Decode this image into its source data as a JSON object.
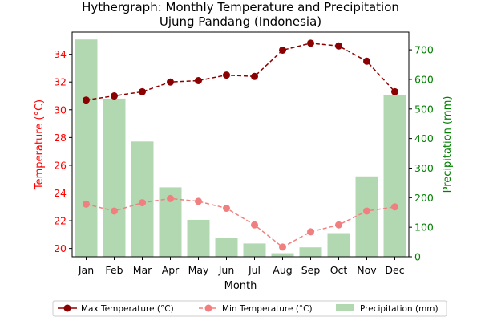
{
  "chart_data": {
    "type": "bar+line",
    "title": "Hythergraph: Monthly Temperature and Precipitation",
    "subtitle": "Ujung Pandang (Indonesia)",
    "xlabel": "Month",
    "ylabel_left": "Temperature (°C)",
    "ylabel_right": "Precipitation (mm)",
    "categories": [
      "Jan",
      "Feb",
      "Mar",
      "Apr",
      "May",
      "Jun",
      "Jul",
      "Aug",
      "Sep",
      "Oct",
      "Nov",
      "Dec"
    ],
    "ylim_left": [
      19.4,
      35.6
    ],
    "ylim_right": [
      0,
      760
    ],
    "yticks_left": [
      20,
      22,
      24,
      26,
      28,
      30,
      32,
      34
    ],
    "yticks_right": [
      0,
      100,
      200,
      300,
      400,
      500,
      600,
      700
    ],
    "grid": false,
    "legend_position": "bottom",
    "series": [
      {
        "name": "Max Temperature (°C)",
        "kind": "line",
        "axis": "left",
        "color": "#8b0000",
        "linestyle": "dashed",
        "values": [
          30.7,
          31.0,
          31.3,
          32.0,
          32.1,
          32.5,
          32.4,
          34.3,
          34.8,
          34.6,
          33.5,
          31.3
        ]
      },
      {
        "name": "Min Temperature (°C)",
        "kind": "line",
        "axis": "left",
        "color": "#f08080",
        "linestyle": "dashed",
        "values": [
          23.2,
          22.7,
          23.3,
          23.6,
          23.4,
          22.9,
          21.7,
          20.1,
          21.2,
          21.7,
          22.7,
          23.0
        ]
      },
      {
        "name": "Precipitation (mm)",
        "kind": "bar",
        "axis": "right",
        "color": "#b2d8b2",
        "values": [
          735,
          535,
          390,
          235,
          125,
          65,
          45,
          12,
          32,
          80,
          272,
          548
        ]
      }
    ],
    "colors": {
      "left_axis": "#ff0000",
      "right_axis": "#008000",
      "bar": "#b2d8b2",
      "max_line": "#8b0000",
      "min_line": "#f08080"
    }
  }
}
